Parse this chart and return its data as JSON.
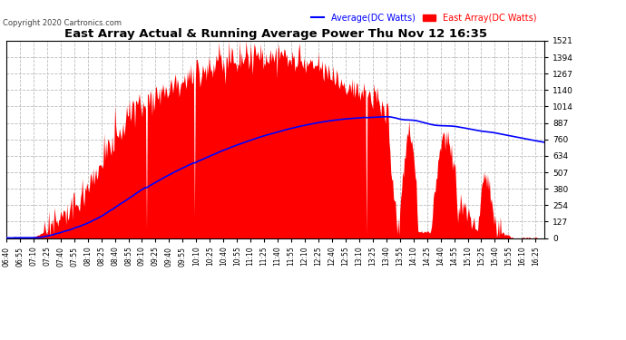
{
  "title": "East Array Actual & Running Average Power Thu Nov 12 16:35",
  "copyright": "Copyright 2020 Cartronics.com",
  "legend_avg": "Average(DC Watts)",
  "legend_east": "East Array(DC Watts)",
  "ymax": 1520.7,
  "ymin": 0.0,
  "yticks": [
    0.0,
    126.7,
    253.5,
    380.2,
    506.9,
    633.6,
    760.4,
    887.1,
    1013.8,
    1140.5,
    1267.3,
    1394.0,
    1520.7
  ],
  "bg_color": "#ffffff",
  "plot_bg_color": "#ffffff",
  "grid_color": "#bbbbbb",
  "area_color": "#ff0000",
  "avg_line_color": "#0000ff",
  "title_color": "#000000",
  "copyright_color": "#444444",
  "legend_avg_color": "#0000ff",
  "legend_east_color": "#ff0000",
  "time_labels": [
    "06:40",
    "06:55",
    "07:10",
    "07:25",
    "07:40",
    "07:55",
    "08:10",
    "08:25",
    "08:40",
    "08:55",
    "09:10",
    "09:25",
    "09:40",
    "09:55",
    "10:10",
    "10:25",
    "10:40",
    "10:55",
    "11:10",
    "11:25",
    "11:40",
    "11:55",
    "12:10",
    "12:25",
    "12:40",
    "12:55",
    "13:10",
    "13:25",
    "13:40",
    "13:55",
    "14:10",
    "14:25",
    "14:40",
    "14:55",
    "15:10",
    "15:25",
    "15:40",
    "15:55",
    "16:10",
    "16:25"
  ]
}
